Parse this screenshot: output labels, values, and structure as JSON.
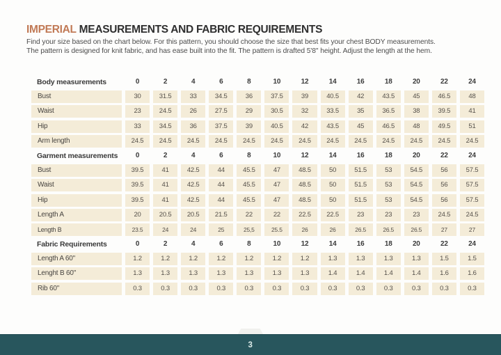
{
  "header": {
    "title_highlight": "IMPERIAL",
    "title_rest": "MEASUREMENTS AND FABRIC REQUIREMENTS",
    "intro_line1": "Find your size based on the chart below. For this pattern, you should choose the size that best fits your chest BODY measurements.",
    "intro_line2": "The pattern is designed for knit fabric, and has ease built into the fit. The pattern is drafted 5'8\" height. Adjust the length at the hem."
  },
  "colors": {
    "accent_orange": "#d3724a",
    "title_orange": "#c17a56",
    "band_edge_cream": "#eedcb2",
    "cell_beige": "#f4ecd8",
    "footer_teal": "#28565d",
    "text_dark": "#3c3c3c"
  },
  "table": {
    "sizes": [
      "0",
      "2",
      "4",
      "6",
      "8",
      "10",
      "12",
      "14",
      "16",
      "18",
      "20",
      "22",
      "24"
    ],
    "groups": [
      {
        "header": "Body measurements",
        "rows": [
          {
            "label": "Bust",
            "values": [
              "30",
              "31.5",
              "33",
              "34.5",
              "36",
              "37.5",
              "39",
              "40.5",
              "42",
              "43.5",
              "45",
              "46.5",
              "48"
            ]
          },
          {
            "label": "Waist",
            "values": [
              "23",
              "24.5",
              "26",
              "27.5",
              "29",
              "30.5",
              "32",
              "33.5",
              "35",
              "36.5",
              "38",
              "39.5",
              "41"
            ]
          },
          {
            "label": "Hip",
            "values": [
              "33",
              "34.5",
              "36",
              "37.5",
              "39",
              "40.5",
              "42",
              "43.5",
              "45",
              "46.5",
              "48",
              "49.5",
              "51"
            ]
          },
          {
            "label": "Arm length",
            "values": [
              "24.5",
              "24.5",
              "24.5",
              "24.5",
              "24.5",
              "24.5",
              "24.5",
              "24.5",
              "24.5",
              "24.5",
              "24.5",
              "24.5",
              "24.5"
            ]
          }
        ]
      },
      {
        "header": "Garment measurements",
        "rows": [
          {
            "label": "Bust",
            "values": [
              "39.5",
              "41",
              "42.5",
              "44",
              "45.5",
              "47",
              "48.5",
              "50",
              "51.5",
              "53",
              "54.5",
              "56",
              "57.5"
            ]
          },
          {
            "label": "Waist",
            "values": [
              "39.5",
              "41",
              "42.5",
              "44",
              "45.5",
              "47",
              "48.5",
              "50",
              "51.5",
              "53",
              "54.5",
              "56",
              "57.5"
            ]
          },
          {
            "label": "Hip",
            "values": [
              "39.5",
              "41",
              "42.5",
              "44",
              "45.5",
              "47",
              "48.5",
              "50",
              "51.5",
              "53",
              "54.5",
              "56",
              "57.5"
            ]
          },
          {
            "label": "Length A",
            "values": [
              "20",
              "20.5",
              "20.5",
              "21.5",
              "22",
              "22",
              "22.5",
              "22.5",
              "23",
              "23",
              "23",
              "24.5",
              "24.5"
            ]
          },
          {
            "label": "Length B",
            "values": [
              "23.5",
              "24",
              "24",
              "25",
              "25,5",
              "25.5",
              "26",
              "26",
              "26.5",
              "26.5",
              "26.5",
              "27",
              "27"
            ]
          }
        ]
      },
      {
        "header": "Fabric Requirements",
        "rows": [
          {
            "label": "Length A 60\"",
            "values": [
              "1.2",
              "1.2",
              "1.2",
              "1.2",
              "1.2",
              "1.2",
              "1.2",
              "1.3",
              "1.3",
              "1.3",
              "1.3",
              "1.5",
              "1.5"
            ]
          },
          {
            "label": "Lenght B 60\"",
            "values": [
              "1.3",
              "1.3",
              "1.3",
              "1.3",
              "1.3",
              "1.3",
              "1.3",
              "1.4",
              "1.4",
              "1.4",
              "1.4",
              "1.6",
              "1.6"
            ]
          },
          {
            "label": "Rib 60\"",
            "values": [
              "0.3",
              "0.3",
              "0.3",
              "0.3",
              "0.3",
              "0.3",
              "0.3",
              "0.3",
              "0.3",
              "0.3",
              "0.3",
              "0.3",
              "0.3"
            ]
          }
        ]
      }
    ]
  },
  "footer": {
    "page_number": "3"
  }
}
